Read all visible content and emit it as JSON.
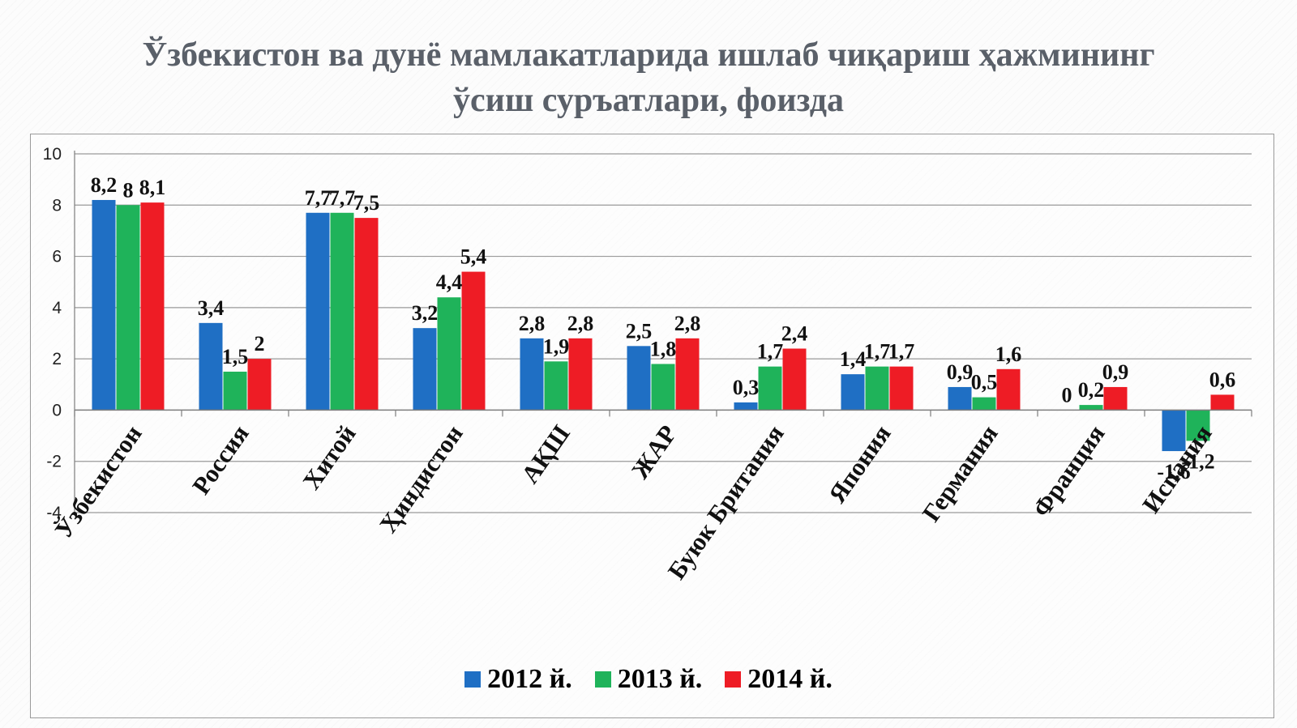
{
  "chart_data": {
    "type": "bar",
    "title": "Ўзбекистон ва дунё мамлакатларида ишлаб чиқариш ҳажмининг ўсиш суръатлари, фоизда",
    "title_lines": [
      "Ўзбекистон ва дунё мамлакатларида ишлаб чиқариш ҳажмининг",
      "ўсиш суръатлари, фоизда"
    ],
    "categories": [
      "Ўзбекистон",
      "Россия",
      "Хитой",
      "Ҳиндистон",
      "АҚШ",
      "ЖАР",
      "Буюк Британия",
      "Япония",
      "Германия",
      "Франция",
      "Испания"
    ],
    "series": [
      {
        "name": "2012 й.",
        "color": "#1f6fc4",
        "values": [
          8.2,
          3.4,
          7.7,
          3.2,
          2.8,
          2.5,
          0.3,
          1.4,
          0.9,
          0,
          -1.6
        ],
        "labels": [
          "8,2",
          "3,4",
          "7,7",
          "3,2",
          "2,8",
          "2,5",
          "0,3",
          "1,4",
          "0,9",
          "0",
          "-1,6"
        ]
      },
      {
        "name": "2013 й.",
        "color": "#1fb35a",
        "values": [
          8,
          1.5,
          7.7,
          4.4,
          1.9,
          1.8,
          1.7,
          1.7,
          0.5,
          0.2,
          -1.2
        ],
        "labels": [
          "8",
          "1,5",
          "7,7",
          "4,4",
          "1,9",
          "1,8",
          "1,7",
          "1,7",
          "0,5",
          "0,2",
          "-1,2"
        ]
      },
      {
        "name": "2014 й.",
        "color": "#ee1c25",
        "values": [
          8.1,
          2,
          7.5,
          5.4,
          2.8,
          2.8,
          2.4,
          1.7,
          1.6,
          0.9,
          0.6
        ],
        "labels": [
          "8,1",
          "2",
          "7,5",
          "5,4",
          "2,8",
          "2,8",
          "2,4",
          "1,7",
          "1,6",
          "0,9",
          "0,6"
        ]
      }
    ],
    "yticks": [
      10,
      8,
      6,
      4,
      2,
      0,
      -2,
      -4
    ],
    "ylim": [
      -4,
      10
    ],
    "grid": true,
    "legend": "bottom"
  }
}
